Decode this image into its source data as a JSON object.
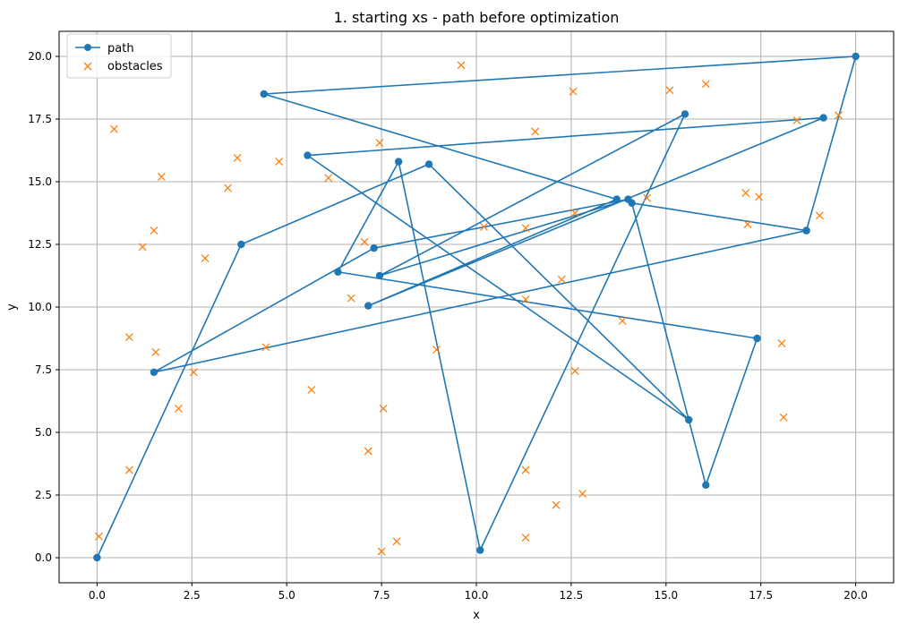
{
  "chart_data": {
    "type": "line",
    "title": "1. starting xs - path before optimization",
    "xlabel": "x",
    "ylabel": "y",
    "xlim": [
      -1.0,
      21.0
    ],
    "ylim": [
      -1.0,
      21.0
    ],
    "xticks": [
      0.0,
      2.5,
      5.0,
      7.5,
      10.0,
      12.5,
      15.0,
      17.5,
      20.0
    ],
    "yticks": [
      0.0,
      2.5,
      5.0,
      7.5,
      10.0,
      12.5,
      15.0,
      17.5,
      20.0
    ],
    "xtick_labels": [
      "0.0",
      "2.5",
      "5.0",
      "7.5",
      "10.0",
      "12.5",
      "15.0",
      "17.5",
      "20.0"
    ],
    "ytick_labels": [
      "0.0",
      "2.5",
      "5.0",
      "7.5",
      "10.0",
      "12.5",
      "15.0",
      "17.5",
      "20.0"
    ],
    "grid": true,
    "legend_position": "top-left",
    "series": [
      {
        "name": "path",
        "style": "line-with-circle-markers",
        "color": "#1f77b4",
        "points": [
          [
            0.0,
            0.0
          ],
          [
            3.8,
            12.5
          ],
          [
            8.75,
            15.7
          ],
          [
            15.6,
            5.5
          ],
          [
            5.55,
            16.05
          ],
          [
            19.15,
            17.55
          ],
          [
            7.15,
            10.05
          ],
          [
            13.7,
            14.3
          ],
          [
            4.4,
            18.5
          ],
          [
            20.0,
            20.0
          ],
          [
            18.7,
            13.05
          ],
          [
            14.1,
            14.15
          ],
          [
            16.05,
            2.9
          ],
          [
            17.4,
            8.75
          ],
          [
            6.35,
            11.4
          ],
          [
            7.95,
            15.8
          ],
          [
            10.1,
            0.3
          ],
          [
            15.5,
            17.7
          ],
          [
            7.45,
            11.25
          ],
          [
            14.0,
            14.3
          ],
          [
            7.3,
            12.35
          ],
          [
            1.5,
            7.4
          ],
          [
            18.7,
            13.05
          ]
        ]
      },
      {
        "name": "obstacles",
        "style": "x-markers",
        "color": "#ff7f0e",
        "points": [
          [
            0.05,
            0.85
          ],
          [
            0.45,
            17.1
          ],
          [
            1.7,
            15.2
          ],
          [
            1.2,
            12.4
          ],
          [
            1.5,
            13.05
          ],
          [
            2.85,
            11.95
          ],
          [
            0.85,
            8.8
          ],
          [
            1.55,
            8.2
          ],
          [
            2.55,
            7.4
          ],
          [
            2.15,
            5.95
          ],
          [
            0.85,
            3.5
          ],
          [
            3.45,
            14.75
          ],
          [
            3.7,
            15.95
          ],
          [
            4.8,
            15.8
          ],
          [
            6.1,
            15.15
          ],
          [
            4.45,
            8.4
          ],
          [
            5.65,
            6.7
          ],
          [
            6.7,
            10.35
          ],
          [
            7.05,
            12.6
          ],
          [
            7.45,
            16.55
          ],
          [
            7.55,
            5.95
          ],
          [
            7.15,
            4.25
          ],
          [
            7.5,
            0.25
          ],
          [
            7.9,
            0.65
          ],
          [
            8.95,
            8.3
          ],
          [
            9.6,
            19.65
          ],
          [
            10.2,
            13.2
          ],
          [
            11.3,
            13.15
          ],
          [
            11.55,
            17.0
          ],
          [
            11.3,
            10.3
          ],
          [
            11.3,
            3.5
          ],
          [
            11.3,
            0.8
          ],
          [
            12.1,
            2.1
          ],
          [
            12.8,
            2.55
          ],
          [
            12.25,
            11.1
          ],
          [
            12.55,
            18.6
          ],
          [
            12.6,
            13.75
          ],
          [
            12.6,
            7.45
          ],
          [
            13.85,
            9.45
          ],
          [
            14.5,
            14.35
          ],
          [
            15.1,
            18.65
          ],
          [
            16.05,
            18.9
          ],
          [
            17.1,
            14.55
          ],
          [
            17.15,
            13.3
          ],
          [
            17.45,
            14.4
          ],
          [
            18.05,
            8.55
          ],
          [
            18.1,
            5.6
          ],
          [
            18.45,
            17.45
          ],
          [
            19.05,
            13.65
          ],
          [
            19.55,
            17.65
          ]
        ]
      }
    ]
  }
}
